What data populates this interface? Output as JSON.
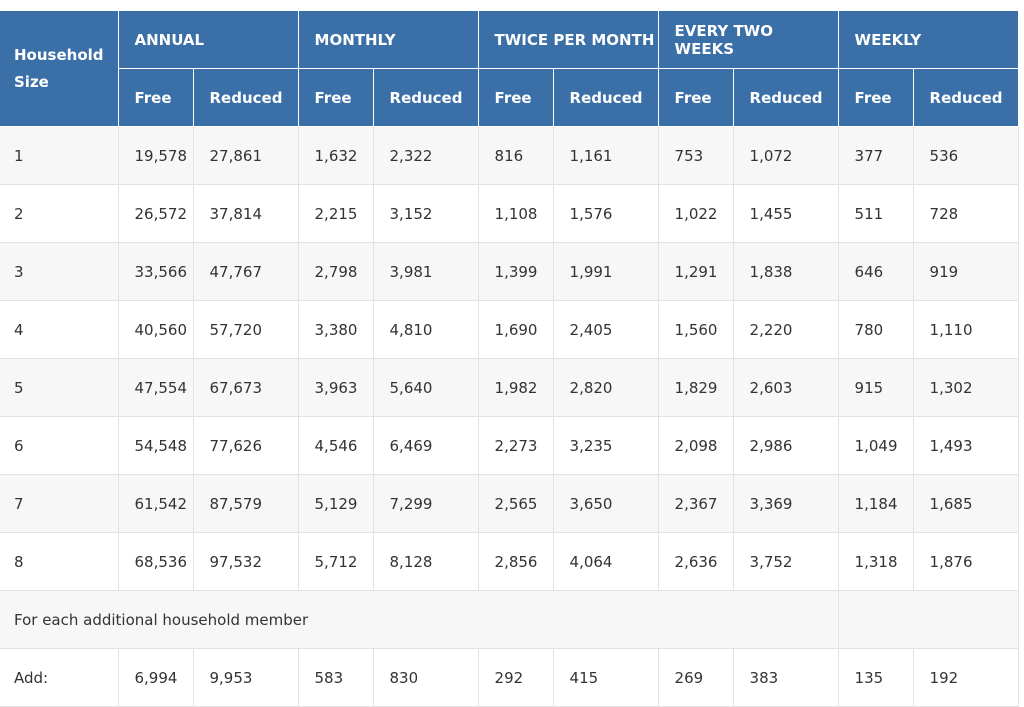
{
  "header": {
    "household_size": "Household Size",
    "groups": [
      "ANNUAL",
      "MONTHLY",
      "TWICE PER MONTH",
      "EVERY TWO WEEKS",
      "WEEKLY"
    ],
    "free_label": "Free",
    "reduced_label": "Reduced"
  },
  "rows": [
    {
      "size": "1",
      "values": [
        "19,578",
        "27,861",
        "1,632",
        "2,322",
        "816",
        "1,161",
        "753",
        "1,072",
        "377",
        "536"
      ]
    },
    {
      "size": "2",
      "values": [
        "26,572",
        "37,814",
        "2,215",
        "3,152",
        "1,108",
        "1,576",
        "1,022",
        "1,455",
        "511",
        "728"
      ]
    },
    {
      "size": "3",
      "values": [
        "33,566",
        "47,767",
        "2,798",
        "3,981",
        "1,399",
        "1,991",
        "1,291",
        "1,838",
        "646",
        "919"
      ]
    },
    {
      "size": "4",
      "values": [
        "40,560",
        "57,720",
        "3,380",
        "4,810",
        "1,690",
        "2,405",
        "1,560",
        "2,220",
        "780",
        "1,110"
      ]
    },
    {
      "size": "5",
      "values": [
        "47,554",
        "67,673",
        "3,963",
        "5,640",
        "1,982",
        "2,820",
        "1,829",
        "2,603",
        "915",
        "1,302"
      ]
    },
    {
      "size": "6",
      "values": [
        "54,548",
        "77,626",
        "4,546",
        "6,469",
        "2,273",
        "3,235",
        "2,098",
        "2,986",
        "1,049",
        "1,493"
      ]
    },
    {
      "size": "7",
      "values": [
        "61,542",
        "87,579",
        "5,129",
        "7,299",
        "2,565",
        "3,650",
        "2,367",
        "3,369",
        "1,184",
        "1,685"
      ]
    },
    {
      "size": "8",
      "values": [
        "68,536",
        "97,532",
        "5,712",
        "8,128",
        "2,856",
        "4,064",
        "2,636",
        "3,752",
        "1,318",
        "1,876"
      ]
    }
  ],
  "additional": {
    "note": "For each additional household member",
    "add_label": "Add:",
    "values": [
      "6,994",
      "9,953",
      "583",
      "830",
      "292",
      "415",
      "269",
      "383",
      "135",
      "192"
    ]
  },
  "colors": {
    "header_bg": "#3a6fa8",
    "stripe_bg": "#f7f7f7"
  }
}
